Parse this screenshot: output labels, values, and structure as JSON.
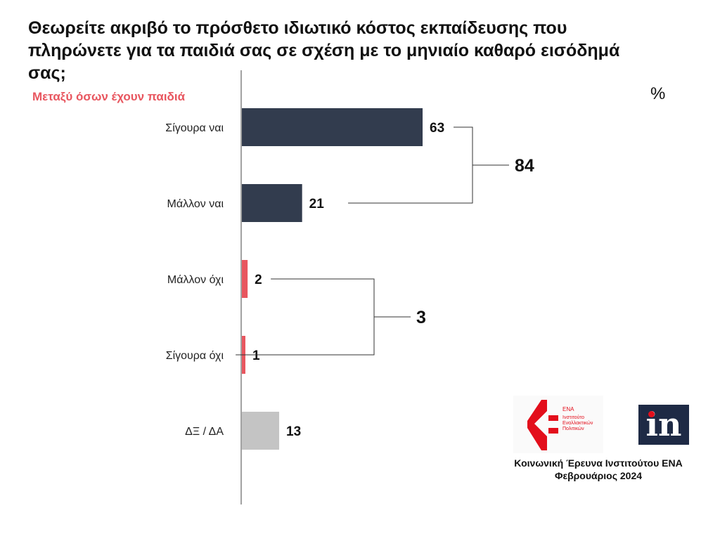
{
  "chart_data": {
    "type": "bar",
    "orientation": "horizontal",
    "title": "Θεωρείτε ακριβό το πρόσθετο ιδιωτικό κόστος εκπαίδευσης που πληρώνετε για τα παιδιά σας σε σχέση με το μηνιαίο καθαρό εισόδημά σας;",
    "subtitle": "Μεταξύ όσων έχουν παιδιά",
    "unit": "%",
    "xlim": [
      0,
      100
    ],
    "grid": false,
    "categories": [
      "Σίγουρα ναι",
      "Μάλλον ναι",
      "Μάλλον όχι",
      "Σίγουρα όχι",
      "ΔΞ / ΔΑ"
    ],
    "values": [
      63,
      21,
      2,
      1,
      13
    ],
    "colors": [
      "#323c4e",
      "#323c4e",
      "#e8565f",
      "#e8565f",
      "#c4c4c4"
    ],
    "groups": [
      {
        "members": [
          0,
          1
        ],
        "total": "84"
      },
      {
        "members": [
          2,
          3
        ],
        "total": "3"
      }
    ]
  },
  "logos": {
    "ena_name": "ΕΝΑ",
    "ena_line1": "Ινστιτούτο",
    "ena_line2": "Εναλλακτικών",
    "ena_line3": "Πολιτικών",
    "in_mark": "in",
    "ena_color": "#e30e1b",
    "in_color": "#1e2a45"
  },
  "source": {
    "line1": "Κοινωνική Έρευνα Ινστιτούτου ΕΝΑ",
    "line2": "Φεβρουάριος 2024"
  }
}
